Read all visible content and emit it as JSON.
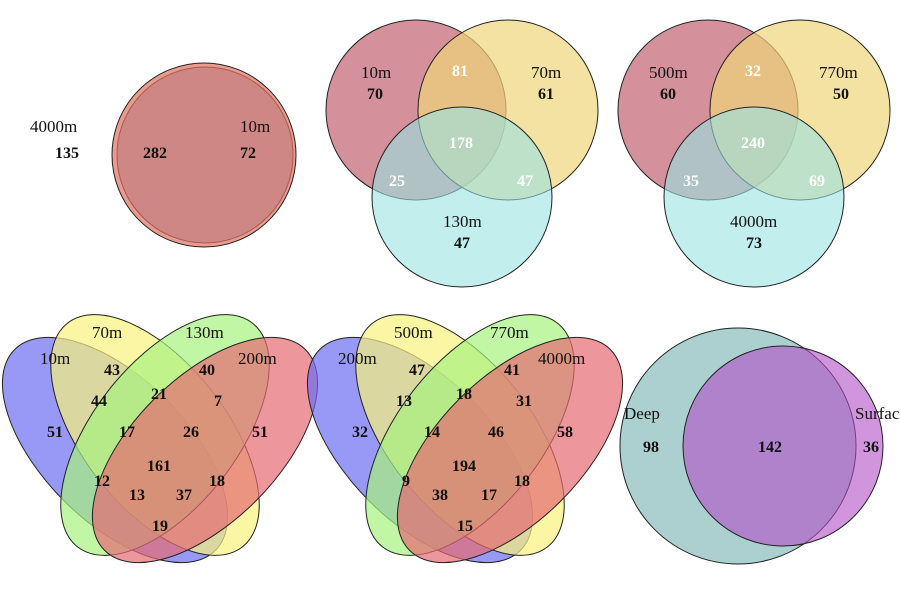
{
  "colors": {
    "blue2": "#7f9fcc",
    "red2": "#e0705f",
    "red3": "#c26270",
    "yellow3": "#efd57a",
    "cyan3": "#99e2e2",
    "v4_blue": "#6c6cf2",
    "v4_yellow": "#f8f27d",
    "v4_green": "#a6f27d",
    "v4_red": "#e56b73",
    "teal": "#7fb6b6",
    "purple": "#b24ec8"
  },
  "venn1": {
    "sets": [
      "4000m",
      "10m"
    ],
    "counts": {
      "a": "135",
      "ab": "282",
      "b": "72"
    }
  },
  "venn2": {
    "sets": [
      "10m",
      "70m",
      "130m"
    ],
    "counts": {
      "a": "70",
      "b": "61",
      "c": "47",
      "ab": "81",
      "ac": "25",
      "bc": "47",
      "abc": "178"
    }
  },
  "venn3": {
    "sets": [
      "500m",
      "770m",
      "4000m"
    ],
    "counts": {
      "a": "60",
      "b": "50",
      "c": "73",
      "ab": "32",
      "ac": "35",
      "bc": "69",
      "abc": "240"
    }
  },
  "venn4": {
    "sets": [
      "10m",
      "70m",
      "130m",
      "200m"
    ],
    "counts": {
      "a": "51",
      "b": "43",
      "c": "40",
      "d": "51",
      "ab": "44",
      "bc": "21",
      "cd": "7",
      "abc": "17",
      "bcd": "26",
      "ac": "12",
      "bd": "18",
      "abcd": "161",
      "acd": "13",
      "abd": "37",
      "ad": "19"
    }
  },
  "venn5": {
    "sets": [
      "200m",
      "500m",
      "770m",
      "4000m"
    ],
    "counts": {
      "a": "32",
      "b": "47",
      "c": "41",
      "d": "58",
      "ab": "13",
      "bc": "18",
      "cd": "31",
      "abc": "14",
      "bcd": "46",
      "ac": "9",
      "bd": "18",
      "abcd": "194",
      "acd": "38",
      "abd": "17",
      "ad": "15"
    }
  },
  "venn6": {
    "sets": [
      "Deep",
      "Surfac"
    ],
    "counts": {
      "a": "98",
      "ab": "142",
      "b": "36"
    }
  }
}
